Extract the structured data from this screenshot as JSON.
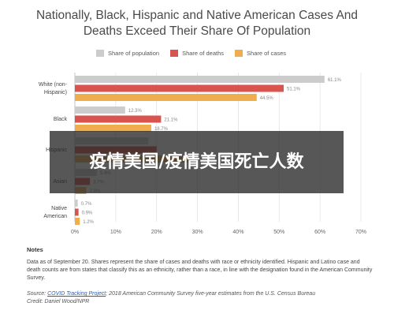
{
  "title_line1": "Nationally, Black, Hispanic and Native American Cases And",
  "title_line2": "Deaths Exceed Their Share Of Population",
  "legend": [
    {
      "label": "Share of population",
      "color": "#cccccc"
    },
    {
      "label": "Share of deaths",
      "color": "#d9534f"
    },
    {
      "label": "Share of cases",
      "color": "#f0ad4e"
    }
  ],
  "chart_data": {
    "type": "bar",
    "orientation": "horizontal",
    "categories": [
      "White (non-Hispanic)",
      "Black",
      "Hispanic",
      "Asian",
      "Native American"
    ],
    "category_lines": [
      [
        "White (non-",
        "Hispanic)"
      ],
      [
        "Black"
      ],
      [
        "Hispanic"
      ],
      [
        "Asian"
      ],
      [
        "Native",
        "American"
      ]
    ],
    "series": [
      {
        "name": "Share of population",
        "color": "#cccccc",
        "values": [
          61.1,
          12.3,
          18.0,
          5.4,
          0.7
        ],
        "labels": [
          "61.1%",
          "12.3%",
          "",
          "5.4%",
          "0.7%"
        ]
      },
      {
        "name": "Share of deaths",
        "color": "#d9534f",
        "values": [
          51.1,
          21.1,
          20.0,
          3.7,
          0.9
        ],
        "labels": [
          "51.1%",
          "21.1%",
          "",
          "3.7%",
          "0.9%"
        ]
      },
      {
        "name": "Share of cases",
        "color": "#f0ad4e",
        "values": [
          44.5,
          18.7,
          28.4,
          2.8,
          1.2
        ],
        "labels": [
          "44.5%",
          "18.7%",
          "28.4%",
          "2.8%",
          "1.2%"
        ]
      }
    ],
    "xlim": [
      0,
      70
    ],
    "xticks": [
      "0%",
      "10%",
      "20%",
      "30%",
      "40%",
      "50%",
      "60%",
      "70%"
    ],
    "grid": true,
    "legend_position": "top"
  },
  "notes": {
    "title": "Notes",
    "body": "Data as of September 20. Shares represent the share of cases and deaths with race or ethnicity identified. Hispanic and Latino case and death counts are from states that classify this as an ethnicity, rather than a race, in line with the designation found in the American Community Survey.",
    "source_prefix": "Source: ",
    "source_link": "COVID Tracking Project",
    "source_rest": "; 2018 American Community Survey five-year estimates from the U.S. Census Bureau",
    "credit": "Credit: Daniel Wood/NPR"
  },
  "overlay": {
    "text": "疫情美国/疫情美国死亡人数"
  }
}
